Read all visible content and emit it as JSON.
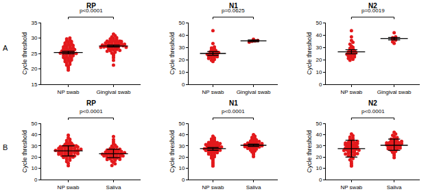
{
  "chart_data": [
    {
      "type": "scatter",
      "panel": "A",
      "title": "RP",
      "y_label": "Cycle threshold",
      "p_value": "p<0.0001",
      "categories": [
        "NP swab",
        "Gingival swab"
      ],
      "color": "#e3191c",
      "marker": "circle",
      "ylim": [
        15,
        35
      ],
      "yticks": [
        15,
        20,
        25,
        30,
        35
      ],
      "values": [
        [
          19.6,
          20.3,
          20.8,
          21.2,
          21.5,
          21.9,
          22.2,
          22.4,
          22.7,
          22.9,
          23.1,
          23.3,
          23.5,
          23.7,
          23.9,
          24.1,
          24.3,
          24.4,
          24.6,
          24.8,
          24.9,
          25.1,
          25.2,
          25.4,
          25.5,
          25.6,
          25.8,
          25.9,
          26.0,
          26.2,
          26.3,
          26.5,
          26.6,
          26.8,
          26.9,
          27.1,
          27.2,
          27.4,
          27.6,
          27.8,
          28.0,
          28.2,
          28.4,
          28.6,
          28.9,
          29.1,
          29.4,
          29.7,
          30.0,
          25.0
        ],
        [
          21.2,
          22.8,
          23.6,
          24.2,
          24.7,
          25.1,
          25.4,
          25.7,
          25.9,
          26.1,
          26.3,
          26.5,
          26.6,
          26.8,
          26.9,
          27.0,
          27.1,
          27.2,
          27.3,
          27.4,
          27.5,
          27.6,
          27.7,
          27.8,
          27.9,
          28.0,
          28.1,
          28.2,
          28.3,
          28.4,
          28.5,
          28.6,
          28.7,
          28.8,
          28.9,
          29.0,
          29.1,
          29.3,
          29.5,
          29.7,
          29.9,
          30.1,
          30.4,
          30.8,
          31.3,
          27.5,
          27.0,
          28.0,
          26.0,
          29.0
        ]
      ],
      "summary": [
        {
          "mean": 25.3,
          "lower": 24.9,
          "upper": 25.7
        },
        {
          "mean": 27.4,
          "lower": 27.1,
          "upper": 27.7
        }
      ]
    },
    {
      "type": "scatter",
      "title": "N1",
      "y_label": "Cycle threshold",
      "p_value": "p=0.0625",
      "categories": [
        "NP swab",
        "Gingival swab"
      ],
      "color": "#e3191c",
      "marker": "circle",
      "ylim": [
        0,
        50
      ],
      "yticks": [
        0,
        10,
        20,
        30,
        40,
        50
      ],
      "values": [
        [
          18.5,
          19.5,
          20.2,
          21,
          21.5,
          22,
          22.4,
          22.8,
          23.2,
          23.6,
          24,
          24.3,
          24.6,
          25,
          25.4,
          25.8,
          26.3,
          26.8,
          27.4,
          28,
          28.8,
          29.5,
          30.3,
          33,
          43.5
        ],
        [
          34.2,
          34.8,
          35.2,
          35.6,
          36.5
        ]
      ],
      "summary": [
        {
          "mean": 25,
          "lower": 23.5,
          "upper": 26.5
        },
        {
          "mean": 35.2,
          "lower": 34.5,
          "upper": 36
        }
      ]
    },
    {
      "type": "scatter",
      "title": "N2",
      "y_label": "Cycle threshold",
      "p_value": "p=0.0019",
      "categories": [
        "NP swab",
        "Gingival swab"
      ],
      "color": "#e3191c",
      "marker": "circle",
      "ylim": [
        0,
        50
      ],
      "yticks": [
        0,
        10,
        20,
        30,
        40,
        50
      ],
      "values": [
        [
          19.5,
          20.3,
          21,
          21.6,
          22.2,
          22.8,
          23.3,
          23.8,
          24.3,
          24.8,
          25.3,
          25.8,
          26.3,
          26.8,
          27.3,
          27.9,
          28.5,
          29.2,
          30,
          31,
          32.5,
          34,
          35.5,
          38.5,
          43.5
        ],
        [
          33.2,
          34.5,
          35.8,
          36.5,
          37.2,
          37.8,
          38.5,
          41.8
        ]
      ],
      "summary": [
        {
          "mean": 26.3,
          "lower": 24.7,
          "upper": 28
        },
        {
          "mean": 37,
          "lower": 36,
          "upper": 38
        }
      ]
    },
    {
      "type": "scatter",
      "panel": "B",
      "title": "RP",
      "y_label": "Cycle threshold",
      "p_value": "p<0.0001",
      "categories": [
        "NP swab",
        "Saliva"
      ],
      "color": "#e3191c",
      "marker": "circle",
      "ylim": [
        0,
        50
      ],
      "yticks": [
        0,
        10,
        20,
        30,
        40,
        50
      ],
      "values": [
        [
          12.3,
          14.5,
          16,
          17.2,
          18.1,
          18.9,
          19.6,
          20.2,
          20.8,
          21.3,
          21.8,
          22.2,
          22.6,
          23,
          23.4,
          23.7,
          24,
          24.3,
          24.6,
          24.9,
          25.1,
          25.4,
          25.6,
          25.9,
          26.1,
          26.4,
          26.6,
          26.9,
          27.1,
          27.4,
          27.7,
          28,
          28.3,
          28.6,
          28.9,
          29.2,
          29.5,
          29.9,
          30.3,
          30.7,
          31.2,
          31.7,
          32.3,
          33,
          33.8,
          34.7,
          35.8,
          37.2,
          39.5,
          25,
          24,
          26,
          27,
          23,
          22,
          28,
          21,
          29,
          30,
          20
        ],
        [
          12.5,
          14,
          15.3,
          16.3,
          17.1,
          17.8,
          18.4,
          19,
          19.5,
          19.9,
          20.3,
          20.7,
          21.1,
          21.4,
          21.7,
          22,
          22.3,
          22.6,
          22.9,
          23.2,
          23.5,
          23.8,
          24.1,
          24.4,
          24.7,
          25,
          25.4,
          25.8,
          26.2,
          26.6,
          27.1,
          27.6,
          28.2,
          28.9,
          29.7,
          30.6,
          31.8,
          33.5,
          35.5,
          38.2,
          22,
          23,
          24,
          21,
          20,
          25,
          26,
          19,
          18,
          27
        ]
      ],
      "summary": [
        {
          "mean": 25.5,
          "lower": 21,
          "upper": 30
        },
        {
          "mean": 23,
          "lower": 19.5,
          "upper": 27
        }
      ]
    },
    {
      "type": "scatter",
      "title": "N1",
      "y_label": "Cycle threshold",
      "p_value": "p<0.0001",
      "categories": [
        "NP swab",
        "Saliva"
      ],
      "color": "#e3191c",
      "marker": "circle",
      "ylim": [
        0,
        50
      ],
      "yticks": [
        0,
        10,
        20,
        30,
        40,
        50
      ],
      "values": [
        [
          12,
          13.5,
          15,
          16.5,
          18,
          19.2,
          20.3,
          21.2,
          22,
          22.7,
          23.3,
          23.9,
          24.4,
          24.9,
          25.4,
          25.9,
          26.3,
          26.7,
          27.1,
          27.5,
          27.9,
          28.3,
          28.7,
          29.1,
          29.5,
          29.9,
          30.3,
          30.7,
          31.1,
          31.5,
          31.9,
          32.4,
          32.9,
          33.4,
          34,
          34.6,
          35.3,
          36.1,
          37,
          38.5,
          28,
          27,
          29,
          26,
          30,
          25,
          31,
          24,
          32,
          33
        ],
        [
          20.5,
          22.3,
          23.6,
          24.6,
          25.4,
          26.1,
          26.7,
          27.2,
          27.7,
          28.1,
          28.5,
          28.9,
          29.2,
          29.5,
          29.8,
          30.1,
          30.4,
          30.7,
          31,
          31.3,
          31.6,
          31.9,
          32.2,
          32.5,
          32.8,
          33.1,
          33.5,
          33.9,
          34.3,
          34.8,
          35.3,
          35.9,
          36.6,
          37.5,
          38.6,
          40,
          30,
          31,
          29,
          32
        ]
      ],
      "summary": [
        {
          "mean": 27.5,
          "lower": 26,
          "upper": 28.5
        },
        {
          "mean": 30.5,
          "lower": 29.5,
          "upper": 31.5
        }
      ]
    },
    {
      "type": "scatter",
      "title": "N2",
      "y_label": "Cycle threshold",
      "p_value": "p<0.0001",
      "categories": [
        "NP swab",
        "Saliva"
      ],
      "color": "#e3191c",
      "marker": "circle",
      "ylim": [
        0,
        50
      ],
      "yticks": [
        0,
        10,
        20,
        30,
        40,
        50
      ],
      "values": [
        [
          12,
          13,
          14.5,
          16,
          17.5,
          18.8,
          20,
          21,
          21.9,
          22.7,
          23.4,
          24.1,
          24.7,
          25.3,
          25.9,
          26.4,
          26.9,
          27.4,
          27.9,
          28.4,
          28.9,
          29.4,
          29.9,
          30.4,
          30.9,
          31.4,
          31.9,
          32.5,
          33.1,
          33.7,
          34.4,
          35.1,
          35.9,
          36.8,
          37.8,
          39,
          40.5,
          27,
          28,
          26,
          29,
          25,
          30,
          24,
          31,
          23,
          32,
          33,
          22,
          34
        ],
        [
          19.5,
          21.5,
          23,
          24.2,
          25.2,
          26,
          26.8,
          27.5,
          28.1,
          28.7,
          29.2,
          29.7,
          30.2,
          30.6,
          31,
          31.4,
          31.8,
          32.2,
          32.6,
          33,
          33.4,
          33.8,
          34.3,
          34.8,
          35.3,
          35.9,
          36.6,
          37.4,
          38.3,
          39.3,
          40.5,
          42,
          30,
          31,
          32,
          29,
          33,
          28,
          34,
          27
        ]
      ],
      "summary": [
        {
          "mean": 27.5,
          "lower": 20,
          "upper": 35
        },
        {
          "mean": 30.5,
          "lower": 26,
          "upper": 36
        }
      ]
    }
  ]
}
